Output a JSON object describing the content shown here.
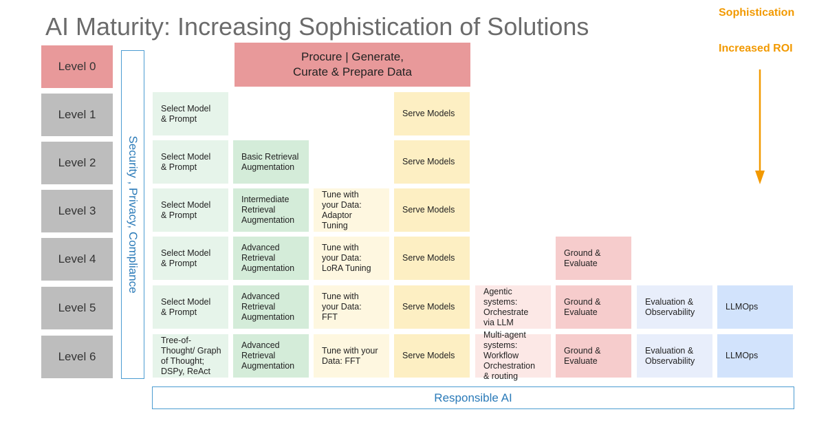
{
  "title": "AI Maturity: Increasing Sophistication of Solutions",
  "side_labels": [
    "Sophistication",
    "Increased ROI"
  ],
  "banner": "Procure | Generate,\nCurate & Prepare Data",
  "vertical_band": "Security , Privacy, Compliance",
  "bottom_band": "Responsible AI",
  "levels": [
    "Level 0",
    "Level 1",
    "Level 2",
    "Level 3",
    "Level 4",
    "Level 5",
    "Level 6"
  ],
  "rows": [
    [
      "Select Model\n& Prompt",
      null,
      null,
      "Serve Models",
      null,
      null,
      null,
      null
    ],
    [
      "Select Model\n& Prompt",
      "Basic Retrieval\nAugmentation",
      null,
      "Serve Models",
      null,
      null,
      null,
      null
    ],
    [
      "Select Model\n& Prompt",
      "Intermediate\nRetrieval\nAugmentation",
      "Tune with\nyour Data:\nAdaptor\nTuning",
      "Serve Models",
      null,
      null,
      null,
      null
    ],
    [
      "Select Model\n& Prompt",
      "Advanced\nRetrieval\nAugmentation",
      "Tune with\nyour Data:\nLoRA Tuning",
      "Serve Models",
      null,
      "Ground &\nEvaluate",
      null,
      null
    ],
    [
      "Select Model\n& Prompt",
      "Advanced\nRetrieval\nAugmentation",
      "Tune with\nyour Data:\nFFT",
      "Serve Models",
      "Agentic\nsystems:\nOrchestrate\nvia LLM",
      "Ground &\nEvaluate",
      "Evaluation &\nObservability",
      "LLMOps"
    ],
    [
      "Tree-of-\nThought/ Graph\nof Thought;\nDSPy, ReAct",
      "Advanced\nRetrieval\nAugmentation",
      "Tune with your\nData: FFT",
      "Serve Models",
      "Multi-agent\nsystems:\nWorkflow\nOrchestration\n& routing",
      "Ground &\nEvaluate",
      "Evaluation &\nObservability",
      "LLMOps"
    ]
  ]
}
